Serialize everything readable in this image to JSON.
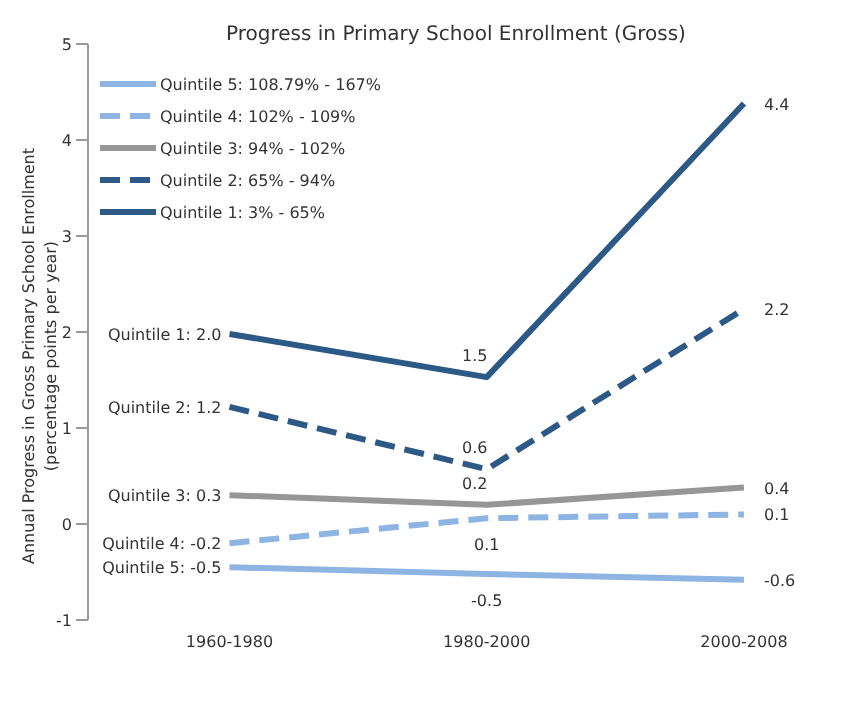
{
  "chart_data": {
    "type": "line",
    "title": "Progress in Primary School Enrollment (Gross)",
    "ylabel": "Annual Progress in Gross Primary School Enrollment (percentage points per year)",
    "categories": [
      "1960-1980",
      "1980-2000",
      "2000-2008"
    ],
    "ylim": [
      -1,
      5
    ],
    "yticks": [
      -1,
      0,
      1,
      2,
      3,
      4,
      5
    ],
    "legend": "top left",
    "marker": "none",
    "series": [
      {
        "name": "Quintile 5: 108.79% - 167%",
        "color": "#8db4e2",
        "line_style": "solid",
        "values": [
          -0.45,
          -0.52,
          -0.58
        ],
        "value_labels": [
          "Quintile 5: -0.5",
          "-0.5",
          "-0.6"
        ]
      },
      {
        "name": "Quintile 4: 102% - 109%",
        "color": "#8db4e2",
        "line_style": "dashed",
        "values": [
          -0.2,
          0.06,
          0.1
        ],
        "value_labels": [
          "Quintile 4: -0.2",
          "0.1",
          "0.1"
        ]
      },
      {
        "name": "Quintile 3: 94% - 102%",
        "color": "#969696",
        "line_style": "solid",
        "values": [
          0.3,
          0.2,
          0.38
        ],
        "value_labels": [
          "Quintile 3: 0.3",
          "0.2",
          "0.4"
        ]
      },
      {
        "name": "Quintile 2: 65% - 94%",
        "color": "#2c5985",
        "line_style": "dashed",
        "values": [
          1.22,
          0.57,
          2.24
        ],
        "value_labels": [
          "Quintile 2: 1.2",
          "0.6",
          "2.2"
        ]
      },
      {
        "name": "Quintile 1: 3% - 65%",
        "color": "#2c5985",
        "line_style": "solid",
        "values": [
          1.98,
          1.53,
          4.38
        ],
        "value_labels": [
          "Quintile 1: 2.0",
          "1.5",
          "4.4"
        ]
      }
    ]
  }
}
